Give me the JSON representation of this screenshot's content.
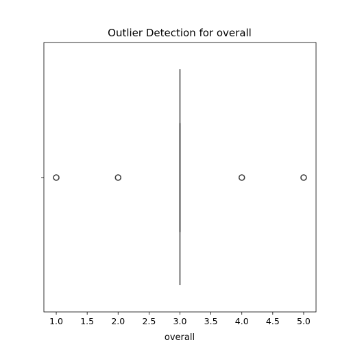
{
  "chart_data": {
    "type": "boxplot",
    "title": "Outlier Detection for overall",
    "xlabel": "overall",
    "ylabel": "",
    "orientation": "horizontal",
    "xlim": [
      0.8,
      5.2
    ],
    "xticks": [
      1.0,
      1.5,
      2.0,
      2.5,
      3.0,
      3.5,
      4.0,
      4.5,
      5.0
    ],
    "xtick_labels": [
      "1.0",
      "1.5",
      "2.0",
      "2.5",
      "3.0",
      "3.5",
      "4.0",
      "4.5",
      "5.0"
    ],
    "box": {
      "min": 3.0,
      "q1": 3.0,
      "median": 3.0,
      "q3": 3.0,
      "max": 3.0
    },
    "outliers": [
      1.0,
      2.0,
      4.0,
      5.0
    ],
    "grid": false,
    "colors": {
      "box_line": "#3f3f3f",
      "outlier_edge": "#3f3f3f",
      "axes": "#000000",
      "background": "#ffffff"
    }
  }
}
